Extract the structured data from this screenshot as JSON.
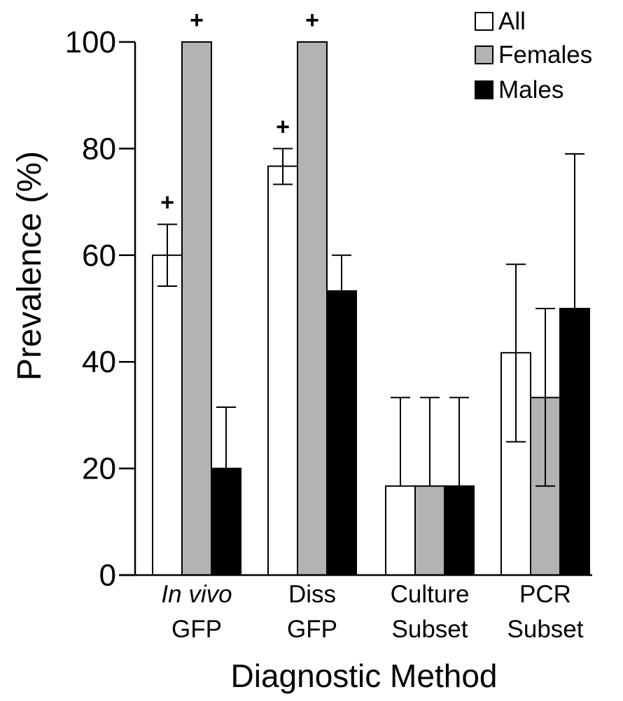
{
  "chart_data": {
    "type": "bar",
    "ylabel": "Prevalence (%)",
    "xlabel": "Diagnostic Method",
    "ylim": [
      0,
      100
    ],
    "yticks": [
      0,
      20,
      40,
      60,
      80,
      100
    ],
    "grid": false,
    "legend_position": "top-right",
    "categories": [
      {
        "line1": "In vivo",
        "line1_italic": true,
        "line2": "GFP"
      },
      {
        "line1": "Diss",
        "line1_italic": false,
        "line2": "GFP"
      },
      {
        "line1": "Culture",
        "line1_italic": false,
        "line2": "Subset"
      },
      {
        "line1": "PCR",
        "line1_italic": false,
        "line2": "Subset"
      }
    ],
    "series": [
      {
        "name": "All",
        "color": "#ffffff",
        "values": [
          60,
          76.7,
          16.7,
          41.7
        ],
        "err_low": [
          54.2,
          73.3,
          16.7,
          25
        ],
        "err_high": [
          65.8,
          80,
          33.3,
          58.3
        ],
        "sig": [
          "+",
          "+",
          "",
          ""
        ]
      },
      {
        "name": "Females",
        "color": "#b3b3b3",
        "values": [
          100,
          100,
          16.7,
          33.3
        ],
        "err_low": [
          100,
          100,
          16.7,
          16.7
        ],
        "err_high": [
          100,
          100,
          33.3,
          50
        ],
        "sig": [
          "+",
          "+",
          "",
          ""
        ]
      },
      {
        "name": "Males",
        "color": "#000000",
        "values": [
          20,
          53.3,
          16.7,
          50
        ],
        "err_low": [
          20,
          53.3,
          16.7,
          50
        ],
        "err_high": [
          31.5,
          60,
          33.3,
          79
        ],
        "sig": [
          "",
          "",
          "",
          ""
        ]
      }
    ]
  }
}
